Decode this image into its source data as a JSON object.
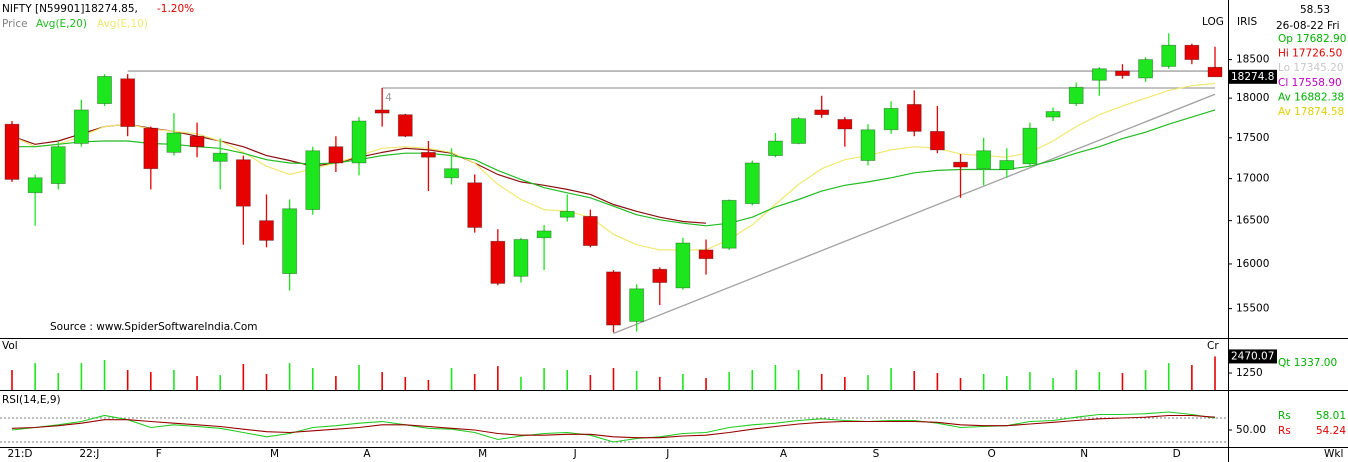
{
  "header": {
    "symbol": "NIFTY [N59901]18274.85,",
    "change": "-1.20%",
    "price": "Price"
  },
  "info": {
    "value": "58.53",
    "date": "26-08-22 Fri",
    "rows": [
      {
        "text": "Op 17682.90",
        "color": "#00b000"
      },
      {
        "text": "Hi 17726.50",
        "color": "#e00000"
      },
      {
        "text": "Lo 17345.20",
        "color": "#c8c8c8"
      },
      {
        "text": "Cl 17558.90",
        "color": "#c000c0"
      },
      {
        "text": "Av 16882.38",
        "color": "#00b000"
      },
      {
        "text": "Av 17874.58",
        "color": "#e0d000"
      }
    ]
  },
  "labels": {
    "log": "LOG",
    "iris": "IRIS",
    "source": "Source : www.SpiderSoftwareIndia.Com",
    "period": "Wkl"
  },
  "chart_data": [
    {
      "type": "candlestick",
      "log": true,
      "ylim": [
        15180,
        19300
      ],
      "yticks": [
        15500,
        16000,
        16500,
        17000,
        17500,
        18000,
        18500
      ],
      "up_color": "#1ee61e",
      "down_color": "#e60000",
      "last_label": "18274.8",
      "categories": [
        "21:D",
        null,
        null,
        "22:J",
        null,
        null,
        "F",
        null,
        null,
        null,
        null,
        "M",
        null,
        null,
        null,
        "A",
        null,
        null,
        null,
        null,
        "M",
        null,
        null,
        null,
        "J",
        null,
        null,
        null,
        "J",
        null,
        null,
        null,
        null,
        "A",
        null,
        null,
        null,
        "S",
        null,
        null,
        null,
        null,
        "O",
        null,
        null,
        null,
        "N",
        null,
        null,
        null,
        "D",
        null,
        null
      ],
      "open": [
        17670,
        16830,
        16940,
        17430,
        17930,
        18250,
        17620,
        17320,
        17520,
        17210,
        17230,
        16500,
        15890,
        16630,
        17390,
        17190,
        17850,
        17790,
        17320,
        17010,
        16950,
        16260,
        15860,
        16300,
        16540,
        16550,
        15910,
        15360,
        15940,
        15730,
        16160,
        16180,
        16700,
        17280,
        17430,
        17850,
        17730,
        17220,
        17600,
        17920,
        17580,
        17200,
        17120,
        17110,
        17180,
        17760,
        17930,
        18230,
        18350,
        18260,
        18410,
        18690,
        18400
      ],
      "high": [
        17710,
        17050,
        17460,
        17980,
        18310,
        18310,
        17640,
        17810,
        17690,
        17490,
        17280,
        16810,
        16750,
        17390,
        17520,
        17760,
        18130,
        17800,
        17460,
        17370,
        17050,
        16400,
        16300,
        16450,
        16810,
        16630,
        15930,
        15770,
        15960,
        16300,
        16280,
        16750,
        17220,
        17560,
        17760,
        18030,
        17760,
        17670,
        17960,
        18100,
        17900,
        17300,
        17500,
        17370,
        17690,
        17880,
        18200,
        18400,
        18440,
        18530,
        18850,
        18710,
        18670
      ],
      "low": [
        16960,
        16440,
        16870,
        17390,
        17900,
        17520,
        16870,
        17280,
        17260,
        16870,
        16220,
        16190,
        15700,
        16570,
        17080,
        17040,
        17640,
        17510,
        16850,
        16930,
        16360,
        15760,
        15790,
        15930,
        16490,
        16190,
        15240,
        15250,
        15540,
        15710,
        15880,
        16160,
        16680,
        17260,
        17420,
        17750,
        17390,
        17160,
        17550,
        17520,
        17310,
        16770,
        16920,
        17010,
        17150,
        17710,
        17900,
        18030,
        18250,
        18210,
        18380,
        18440,
        18290
      ],
      "close": [
        16990,
        17010,
        17390,
        17850,
        18280,
        17640,
        17120,
        17560,
        17390,
        17310,
        16670,
        16270,
        16640,
        17340,
        17190,
        17710,
        17810,
        17520,
        17260,
        17120,
        16420,
        15780,
        16280,
        16380,
        16610,
        16210,
        15320,
        15720,
        15790,
        16240,
        16060,
        16740,
        17190,
        17460,
        17740,
        17790,
        17610,
        17600,
        17870,
        17580,
        17350,
        17140,
        17340,
        17220,
        17620,
        17830,
        18140,
        18380,
        18290,
        18500,
        18690,
        18500,
        18274.85
      ],
      "series": [
        {
          "color": "#8b1010",
          "values": [
            17520,
            17420,
            17460,
            17550,
            17640,
            17670,
            17620,
            17580,
            17520,
            17460,
            17390,
            17280,
            17220,
            17150,
            17190,
            17260,
            17320,
            17370,
            17350,
            17310,
            17190,
            17050,
            16960,
            16920,
            16870,
            16810,
            16690,
            16610,
            16540,
            16490,
            16470,
            null,
            null,
            null,
            null,
            null,
            null,
            null,
            null,
            null,
            null,
            null,
            null,
            null,
            null,
            null,
            null,
            null,
            null,
            null,
            null,
            null,
            null
          ]
        },
        {
          "name": "Avg(E,10)",
          "color": "#f0e870",
          "values": [
            17520,
            17390,
            17420,
            17520,
            17640,
            17670,
            17610,
            17580,
            17550,
            17460,
            17320,
            17150,
            17050,
            17120,
            17190,
            17280,
            17370,
            17390,
            17370,
            17320,
            17190,
            16930,
            16750,
            16630,
            16610,
            16540,
            16340,
            16220,
            16160,
            16160,
            16160,
            16280,
            16450,
            16690,
            16930,
            17120,
            17230,
            17280,
            17350,
            17390,
            17370,
            17300,
            17280,
            17260,
            17320,
            17460,
            17640,
            17790,
            17900,
            18000,
            18100,
            18160,
            18190
          ]
        },
        {
          "name": "Avg(E,20)",
          "color": "#22bb22",
          "values": [
            17390,
            17390,
            17420,
            17450,
            17460,
            17460,
            17430,
            17420,
            17390,
            17370,
            17310,
            17230,
            17190,
            17180,
            17190,
            17230,
            17280,
            17310,
            17310,
            17280,
            17230,
            17100,
            16990,
            16890,
            16830,
            16770,
            16670,
            16570,
            16510,
            16470,
            16440,
            16470,
            16540,
            16660,
            16750,
            16850,
            16920,
            16960,
            17010,
            17070,
            17100,
            17110,
            17110,
            17110,
            17150,
            17220,
            17310,
            17390,
            17490,
            17570,
            17670,
            17760,
            17850
          ]
        }
      ],
      "trendlines": [
        {
          "from": [
            5,
            18350
          ],
          "to": [
            52,
            18350
          ]
        },
        {
          "from": [
            16,
            18130
          ],
          "to": [
            52,
            18130
          ]
        },
        {
          "from": [
            26,
            15230
          ],
          "to": [
            52,
            18050
          ]
        }
      ],
      "annotations": [
        {
          "text": "4",
          "x": 16,
          "y": 18000
        }
      ]
    },
    {
      "type": "bar",
      "title": "Vol",
      "unit": "Cr",
      "ylim": [
        0,
        3680
      ],
      "yticks": [
        1250
      ],
      "last_label": "2470.07",
      "readout": "Qt 1337.00",
      "values": [
        1470,
        1980,
        1250,
        1980,
        2210,
        1470,
        1320,
        1470,
        1030,
        1100,
        1910,
        1180,
        1980,
        1620,
        1030,
        1840,
        1320,
        960,
        740,
        1620,
        1180,
        1760,
        960,
        1620,
        1470,
        1100,
        1620,
        1400,
        960,
        1180,
        880,
        1320,
        1470,
        1840,
        1470,
        1180,
        960,
        1100,
        1620,
        1400,
        1250,
        880,
        1180,
        1030,
        1320,
        880,
        1470,
        1320,
        1250,
        1470,
        1980,
        1840,
        2470.07
      ]
    },
    {
      "type": "line",
      "title": "RSI(14,E,9)",
      "ylim": [
        35,
        75
      ],
      "yticks": [
        {
          "value": 50,
          "label": "50.00"
        }
      ],
      "levels": [
        60,
        40
      ],
      "readouts": [
        {
          "label": "Rs",
          "value": "58.01",
          "color": "#00b000"
        },
        {
          "label": "Rs",
          "value": "54.24",
          "color": "#e00000"
        }
      ],
      "series": [
        {
          "color": "#22cc22",
          "values": [
            50,
            52.1,
            54.3,
            57.1,
            62.1,
            58.6,
            52.1,
            54.3,
            52.9,
            51.4,
            47.9,
            44.3,
            47.1,
            52.1,
            53.6,
            55.7,
            57.1,
            54.3,
            51.4,
            50.7,
            47.9,
            42.1,
            45,
            47.1,
            47.9,
            45.7,
            40,
            42.9,
            44.3,
            47.1,
            47.9,
            52.1,
            54.3,
            55.7,
            57.9,
            59.3,
            57.9,
            57.1,
            57.9,
            57.9,
            55.7,
            52.1,
            52.9,
            53.6,
            57.1,
            57.9,
            60.7,
            62.9,
            62.9,
            63.6,
            65,
            62.9,
            60
          ]
        },
        {
          "color": "#990000",
          "values": [
            51.4,
            52.1,
            53.6,
            55.7,
            58.6,
            58.6,
            57.1,
            55.7,
            54.3,
            52.9,
            50.7,
            48.6,
            47.9,
            49.3,
            50.7,
            52.1,
            54.3,
            54.3,
            52.9,
            51.4,
            50,
            47.1,
            45.7,
            45.7,
            46.4,
            46.4,
            44.3,
            43.6,
            43.6,
            45,
            45.7,
            47.9,
            50.7,
            52.9,
            55,
            56.4,
            57.1,
            57.1,
            57.1,
            57.1,
            56.4,
            54.3,
            53.6,
            53.6,
            55,
            56.4,
            57.9,
            59.3,
            60,
            60.7,
            62.1,
            62.1,
            60.7
          ]
        }
      ]
    }
  ]
}
